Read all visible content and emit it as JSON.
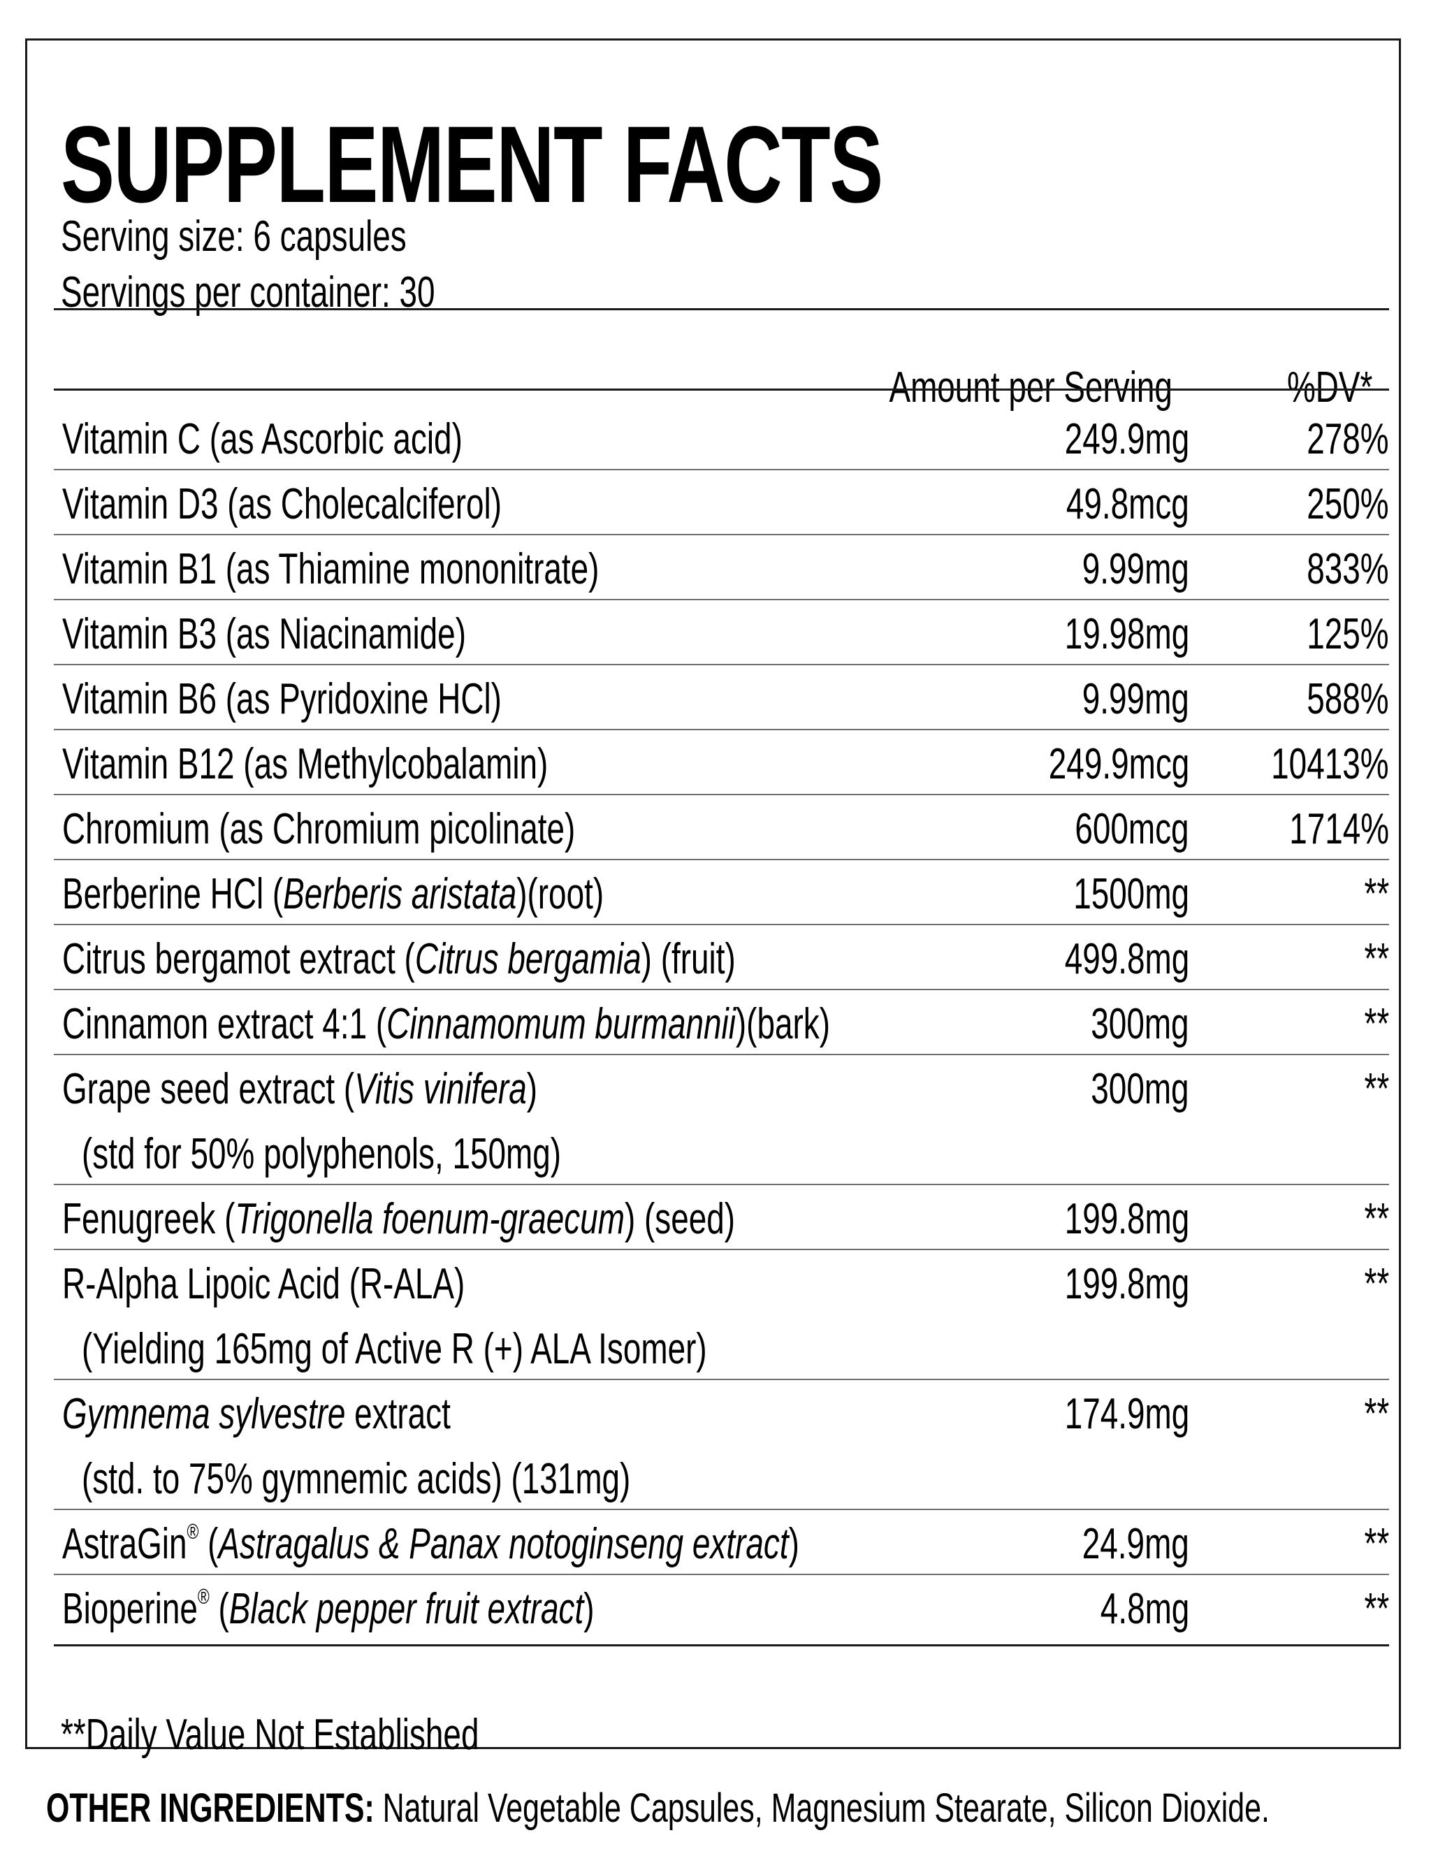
{
  "label": {
    "title": "SUPPLEMENT FACTS",
    "serving_size": "Serving size: 6 capsules",
    "servings_per_container": "Servings per container: 30",
    "header": {
      "amount": "Amount per Serving",
      "dv": "%DV*"
    },
    "rows": [
      {
        "name_parts": [
          {
            "t": "Vitamin C (as Ascorbic acid)"
          }
        ],
        "amount": "249.9mg",
        "dv": "278%"
      },
      {
        "name_parts": [
          {
            "t": "Vitamin D3 (as Cholecalciferol)"
          }
        ],
        "amount": "49.8mcg",
        "dv": "250%"
      },
      {
        "name_parts": [
          {
            "t": "Vitamin B1 (as Thiamine mononitrate)"
          }
        ],
        "amount": "9.99mg",
        "dv": "833%"
      },
      {
        "name_parts": [
          {
            "t": "Vitamin B3 (as Niacinamide)"
          }
        ],
        "amount": "19.98mg",
        "dv": "125%"
      },
      {
        "name_parts": [
          {
            "t": "Vitamin B6 (as Pyridoxine HCl)"
          }
        ],
        "amount": "9.99mg",
        "dv": "588%"
      },
      {
        "name_parts": [
          {
            "t": "Vitamin B12 (as Methylcobalamin)"
          }
        ],
        "amount": "249.9mcg",
        "dv": "10413%"
      },
      {
        "name_parts": [
          {
            "t": "Chromium (as Chromium picolinate)"
          }
        ],
        "amount": "600mcg",
        "dv": "1714%"
      },
      {
        "name_parts": [
          {
            "t": "Berberine HCl ("
          },
          {
            "t": "Berberis aristata",
            "i": true
          },
          {
            "t": ")(root)"
          }
        ],
        "amount": "1500mg",
        "dv": "**"
      },
      {
        "name_parts": [
          {
            "t": "Citrus bergamot extract ("
          },
          {
            "t": "Citrus bergamia",
            "i": true
          },
          {
            "t": ") (fruit)"
          }
        ],
        "amount": "499.8mg",
        "dv": "**"
      },
      {
        "name_parts": [
          {
            "t": "Cinnamon extract 4:1 ("
          },
          {
            "t": "Cinnamomum burmannii",
            "i": true
          },
          {
            "t": ")(bark)"
          }
        ],
        "amount": "300mg",
        "dv": "**"
      },
      {
        "name_parts": [
          {
            "t": "Grape seed extract ("
          },
          {
            "t": "Vitis vinifera",
            "i": true
          },
          {
            "t": ")"
          }
        ],
        "sub": "(std for 50% polyphenols, 150mg)",
        "amount": "300mg",
        "dv": "**"
      },
      {
        "name_parts": [
          {
            "t": "Fenugreek ("
          },
          {
            "t": "Trigonella foenum-graecum",
            "i": true
          },
          {
            "t": ") (seed)"
          }
        ],
        "amount": "199.8mg",
        "dv": "**"
      },
      {
        "name_parts": [
          {
            "t": "R-Alpha Lipoic Acid (R-ALA)"
          }
        ],
        "sub": "(Yielding 165mg of Active R (+) ALA Isomer)",
        "amount": "199.8mg",
        "dv": "**"
      },
      {
        "name_parts": [
          {
            "t": "Gymnema sylvestre",
            "i": true
          },
          {
            "t": " extract"
          }
        ],
        "sub": "(std. to 75% gymnemic acids) (131mg)",
        "amount": "174.9mg",
        "dv": "**"
      },
      {
        "name_parts": [
          {
            "t": "AstraGin"
          },
          {
            "t": "®",
            "sup": true
          },
          {
            "t": " ("
          },
          {
            "t": "Astragalus & Panax notoginseng extract",
            "i": true
          },
          {
            "t": ")"
          }
        ],
        "amount": "24.9mg",
        "dv": "**"
      },
      {
        "name_parts": [
          {
            "t": "Bioperine"
          },
          {
            "t": "®",
            "sup": true
          },
          {
            "t": " ("
          },
          {
            "t": "Black pepper fruit extract",
            "i": true
          },
          {
            "t": ")"
          }
        ],
        "amount": "4.8mg",
        "dv": "**"
      }
    ],
    "footnote": "**Daily Value Not Established"
  },
  "other_ingredients": {
    "label": "OTHER INGREDIENTS:",
    "text": " Natural Vegetable Capsules, Magnesium Stearate, Silicon Dioxide."
  },
  "colors": {
    "text": "#000000",
    "border": "#1a1a1a",
    "row_divider": "#6e6e6e",
    "background": "#ffffff"
  }
}
